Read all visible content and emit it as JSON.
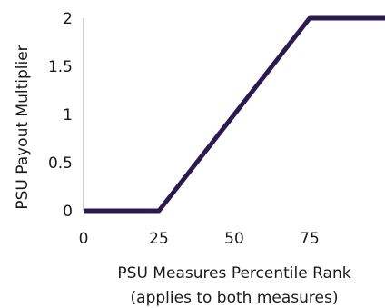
{
  "chart_data": {
    "type": "line",
    "title": "",
    "xlabel": "PSU Measures Percentile Rank",
    "xlabel_sub": "(applies to both measures)",
    "ylabel": "PSU Payout Multiplier",
    "xlim": [
      0,
      100
    ],
    "ylim": [
      0,
      2
    ],
    "x_ticks": [
      0,
      25,
      50,
      75
    ],
    "x_tick_labels": [
      "0",
      "25",
      "50",
      "75"
    ],
    "y_ticks": [
      0,
      0.5,
      1,
      1.5,
      2
    ],
    "y_tick_labels": [
      "0",
      "0.5",
      "1",
      "1.5",
      "2"
    ],
    "grid": false,
    "legend": "none",
    "series": [
      {
        "color": "#2b1a4f",
        "x": [
          0,
          25,
          75,
          100
        ],
        "y": [
          0,
          0,
          2,
          2
        ]
      }
    ]
  }
}
